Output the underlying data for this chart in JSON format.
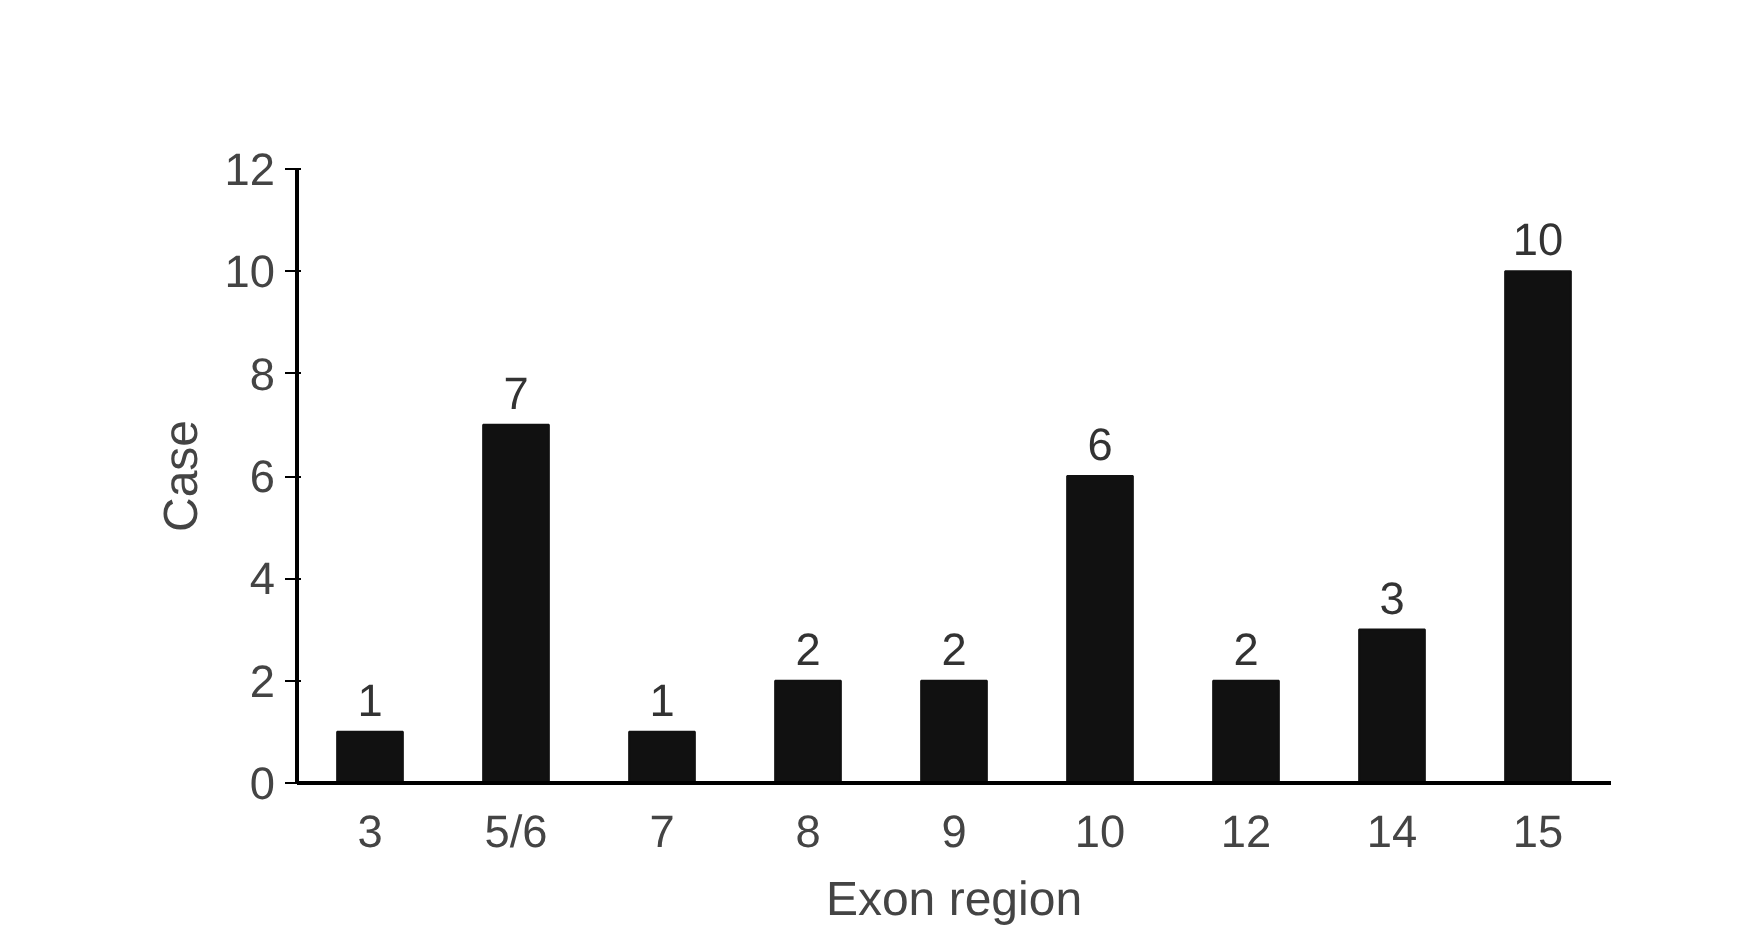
{
  "chart_data": {
    "type": "bar",
    "xlabel": "Exon region",
    "ylabel": "Case",
    "categories": [
      "3",
      "5/6",
      "7",
      "8",
      "9",
      "10",
      "12",
      "14",
      "15"
    ],
    "values": [
      1,
      7,
      1,
      2,
      2,
      6,
      2,
      3,
      10
    ],
    "color": "#111111",
    "ylim": [
      0,
      12
    ],
    "yticks": [
      0,
      2,
      4,
      6,
      8,
      10,
      12
    ],
    "data_labels": true,
    "grid": false
  }
}
